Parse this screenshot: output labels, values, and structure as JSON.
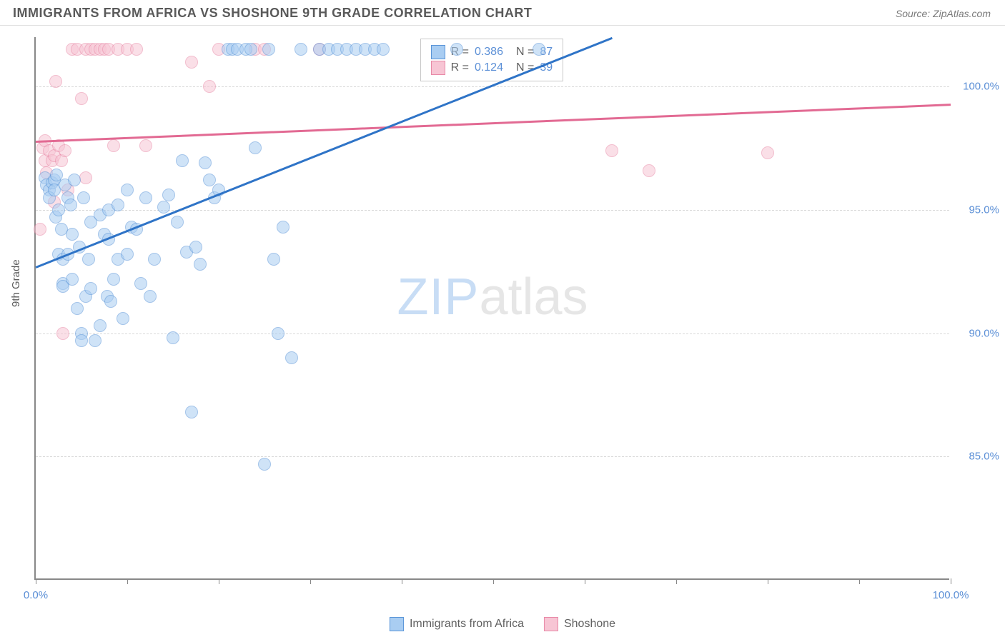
{
  "header": {
    "title": "IMMIGRANTS FROM AFRICA VS SHOSHONE 9TH GRADE CORRELATION CHART",
    "source_prefix": "Source: ",
    "source_name": "ZipAtlas.com"
  },
  "axes": {
    "ylabel": "9th Grade",
    "xlim": [
      0,
      100
    ],
    "ylim": [
      80,
      102
    ],
    "xticks": [
      0,
      10,
      20,
      30,
      40,
      50,
      60,
      70,
      80,
      90,
      100
    ],
    "xtick_labels": {
      "0": "0.0%",
      "100": "100.0%"
    },
    "yticks": [
      85,
      90,
      95,
      100
    ],
    "ytick_labels": {
      "85": "85.0%",
      "90": "90.0%",
      "95": "95.0%",
      "100": "100.0%"
    }
  },
  "style": {
    "background_color": "#ffffff",
    "grid_color": "#d8d8d8",
    "axis_color": "#888888",
    "tick_label_color": "#5b8fd6",
    "point_radius": 9,
    "point_opacity": 0.55,
    "trend_width": 2.5
  },
  "series": {
    "africa": {
      "label": "Immigrants from Africa",
      "fill": "#a9cdf2",
      "stroke": "#5a95d8",
      "trend_color": "#2f74c7",
      "R": "0.386",
      "N": "87",
      "trend": {
        "x1": 0,
        "y1": 92.7,
        "x2": 63,
        "y2": 102
      },
      "points": [
        [
          1,
          96.3
        ],
        [
          1.2,
          96.0
        ],
        [
          1.5,
          95.8
        ],
        [
          1.5,
          95.5
        ],
        [
          1.8,
          96.1
        ],
        [
          2,
          96.2
        ],
        [
          2,
          95.8
        ],
        [
          2.2,
          94.7
        ],
        [
          2.3,
          96.4
        ],
        [
          2.5,
          95.0
        ],
        [
          2.5,
          93.2
        ],
        [
          2.8,
          94.2
        ],
        [
          3,
          93.0
        ],
        [
          3,
          92.0
        ],
        [
          3,
          91.9
        ],
        [
          3.2,
          96.0
        ],
        [
          3.5,
          95.5
        ],
        [
          3.5,
          93.2
        ],
        [
          3.8,
          95.2
        ],
        [
          4,
          94.0
        ],
        [
          4,
          92.2
        ],
        [
          4.2,
          96.2
        ],
        [
          4.5,
          91.0
        ],
        [
          4.8,
          93.5
        ],
        [
          5,
          90.0
        ],
        [
          5,
          89.7
        ],
        [
          5.2,
          95.5
        ],
        [
          5.5,
          91.5
        ],
        [
          5.8,
          93.0
        ],
        [
          6,
          94.5
        ],
        [
          6,
          91.8
        ],
        [
          6.5,
          89.7
        ],
        [
          7,
          94.8
        ],
        [
          7,
          90.3
        ],
        [
          7.5,
          94.0
        ],
        [
          7.8,
          91.5
        ],
        [
          8,
          95.0
        ],
        [
          8,
          93.8
        ],
        [
          8.2,
          91.3
        ],
        [
          8.5,
          92.2
        ],
        [
          9,
          95.2
        ],
        [
          9,
          93.0
        ],
        [
          9.5,
          90.6
        ],
        [
          10,
          93.2
        ],
        [
          10,
          95.8
        ],
        [
          10.5,
          94.3
        ],
        [
          11,
          94.2
        ],
        [
          11.5,
          92.0
        ],
        [
          12,
          95.5
        ],
        [
          12.5,
          91.5
        ],
        [
          13,
          93.0
        ],
        [
          14,
          95.1
        ],
        [
          14.5,
          95.6
        ],
        [
          15,
          89.8
        ],
        [
          15.5,
          94.5
        ],
        [
          16,
          97.0
        ],
        [
          16.5,
          93.3
        ],
        [
          17,
          86.8
        ],
        [
          17.5,
          93.5
        ],
        [
          18,
          92.8
        ],
        [
          18.5,
          96.9
        ],
        [
          19,
          96.2
        ],
        [
          19.5,
          95.5
        ],
        [
          20,
          95.8
        ],
        [
          21,
          101.5
        ],
        [
          21.5,
          101.5
        ],
        [
          22,
          101.5
        ],
        [
          23,
          101.5
        ],
        [
          23.5,
          101.5
        ],
        [
          24,
          97.5
        ],
        [
          25,
          84.7
        ],
        [
          25.5,
          101.5
        ],
        [
          26,
          93.0
        ],
        [
          26.5,
          90.0
        ],
        [
          27,
          94.3
        ],
        [
          28,
          89.0
        ],
        [
          29,
          101.5
        ],
        [
          31,
          101.5
        ],
        [
          32,
          101.5
        ],
        [
          33,
          101.5
        ],
        [
          34,
          101.5
        ],
        [
          35,
          101.5
        ],
        [
          36,
          101.5
        ],
        [
          37,
          101.5
        ],
        [
          38,
          101.5
        ],
        [
          46,
          101.5
        ],
        [
          55,
          101.5
        ]
      ]
    },
    "shoshone": {
      "label": "Shoshone",
      "fill": "#f7c5d4",
      "stroke": "#e889a7",
      "trend_color": "#e26a93",
      "R": "0.124",
      "N": "39",
      "trend": {
        "x1": 0,
        "y1": 97.8,
        "x2": 100,
        "y2": 99.3
      },
      "points": [
        [
          0.5,
          94.2
        ],
        [
          0.8,
          97.5
        ],
        [
          1,
          97.0
        ],
        [
          1,
          97.8
        ],
        [
          1.2,
          96.5
        ],
        [
          1.5,
          97.4
        ],
        [
          1.8,
          97.0
        ],
        [
          2,
          95.3
        ],
        [
          2,
          97.2
        ],
        [
          2.2,
          100.2
        ],
        [
          2.5,
          97.6
        ],
        [
          2.8,
          97.0
        ],
        [
          3,
          90.0
        ],
        [
          3.2,
          97.4
        ],
        [
          3.5,
          95.8
        ],
        [
          4,
          101.5
        ],
        [
          4.5,
          101.5
        ],
        [
          5,
          99.5
        ],
        [
          5.5,
          101.5
        ],
        [
          5.5,
          96.3
        ],
        [
          6,
          101.5
        ],
        [
          6.5,
          101.5
        ],
        [
          7,
          101.5
        ],
        [
          7.5,
          101.5
        ],
        [
          8,
          101.5
        ],
        [
          8.5,
          97.6
        ],
        [
          9,
          101.5
        ],
        [
          10,
          101.5
        ],
        [
          11,
          101.5
        ],
        [
          12,
          97.6
        ],
        [
          17,
          101.0
        ],
        [
          19,
          100.0
        ],
        [
          20,
          101.5
        ],
        [
          24,
          101.5
        ],
        [
          25,
          101.5
        ],
        [
          31,
          101.5
        ],
        [
          63,
          97.4
        ],
        [
          67,
          96.6
        ],
        [
          80,
          97.3
        ]
      ]
    }
  },
  "legend_box": {
    "rows": [
      {
        "swatch": "africa",
        "r_label": "R =",
        "n_label": "N ="
      },
      {
        "swatch": "shoshone",
        "r_label": "R =",
        "n_label": "N ="
      }
    ]
  },
  "watermark": {
    "a": "ZIP",
    "b": "atlas"
  }
}
